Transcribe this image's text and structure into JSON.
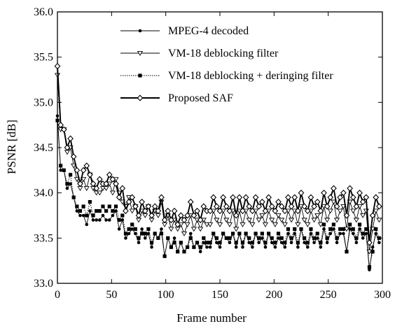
{
  "chart_data": {
    "type": "line",
    "title": "",
    "xlabel": "Frame number",
    "ylabel": "PSNR [dB]",
    "xlim": [
      0,
      300
    ],
    "ylim": [
      33.0,
      36.0
    ],
    "x_ticks": [
      0,
      50,
      100,
      150,
      200,
      250,
      300
    ],
    "x_tick_labels": [
      "0",
      "50",
      "100",
      "150",
      "200",
      "250",
      "300"
    ],
    "y_ticks": [
      33.0,
      33.5,
      34.0,
      34.5,
      35.0,
      35.5,
      36.0
    ],
    "y_tick_labels": [
      "33.0",
      "33.5",
      "34.0",
      "34.5",
      "35.0",
      "35.5",
      "36.0"
    ],
    "grid": false,
    "legend_position": "top-center",
    "x": [
      0,
      3,
      6,
      9,
      12,
      15,
      18,
      21,
      24,
      27,
      30,
      33,
      36,
      39,
      42,
      45,
      48,
      51,
      54,
      57,
      60,
      63,
      66,
      69,
      72,
      75,
      78,
      81,
      84,
      87,
      90,
      93,
      96,
      99,
      102,
      105,
      108,
      111,
      114,
      117,
      120,
      123,
      126,
      129,
      132,
      135,
      138,
      141,
      144,
      147,
      150,
      153,
      156,
      159,
      162,
      165,
      168,
      171,
      174,
      177,
      180,
      183,
      186,
      189,
      192,
      195,
      198,
      201,
      204,
      207,
      210,
      213,
      216,
      219,
      222,
      225,
      228,
      231,
      234,
      237,
      240,
      243,
      246,
      249,
      252,
      255,
      258,
      261,
      264,
      267,
      270,
      273,
      276,
      279,
      282,
      285,
      288,
      291,
      294,
      297
    ],
    "series": [
      {
        "name": "MPEG-4 decoded",
        "marker": "dot",
        "line_style": "thin",
        "values": [
          34.85,
          34.25,
          34.25,
          34.05,
          34.1,
          33.95,
          33.8,
          33.75,
          33.75,
          33.65,
          33.8,
          33.7,
          33.7,
          33.7,
          33.75,
          33.7,
          33.7,
          33.75,
          33.8,
          33.6,
          33.7,
          33.5,
          33.55,
          33.6,
          33.55,
          33.45,
          33.6,
          33.5,
          33.55,
          33.4,
          33.55,
          33.5,
          33.6,
          33.3,
          33.5,
          33.4,
          33.5,
          33.35,
          33.45,
          33.35,
          33.4,
          33.55,
          33.4,
          33.45,
          33.35,
          33.45,
          33.4,
          33.4,
          33.55,
          33.45,
          33.4,
          33.55,
          33.5,
          33.45,
          33.55,
          33.4,
          33.55,
          33.4,
          33.55,
          33.45,
          33.4,
          33.55,
          33.45,
          33.5,
          33.4,
          33.55,
          33.45,
          33.4,
          33.5,
          33.45,
          33.4,
          33.55,
          33.45,
          33.55,
          33.4,
          33.6,
          33.45,
          33.4,
          33.55,
          33.45,
          33.5,
          33.4,
          33.6,
          33.45,
          33.55,
          33.6,
          33.45,
          33.55,
          33.55,
          33.35,
          33.6,
          33.55,
          33.45,
          33.6,
          33.5,
          33.55,
          33.15,
          33.4,
          33.55,
          33.45
        ]
      },
      {
        "name": "VM-18 deblocking filter",
        "marker": "triangle-down",
        "line_style": "thin",
        "values": [
          35.3,
          34.7,
          34.7,
          34.45,
          34.5,
          34.3,
          34.15,
          34.05,
          34.15,
          34.05,
          34.2,
          34.05,
          34.0,
          34.0,
          34.05,
          34.05,
          34.1,
          34.0,
          34.15,
          34.0,
          33.9,
          33.85,
          33.95,
          33.8,
          33.85,
          33.7,
          33.8,
          33.75,
          33.85,
          33.7,
          33.8,
          33.75,
          33.9,
          33.65,
          33.75,
          33.6,
          33.7,
          33.6,
          33.65,
          33.55,
          33.65,
          33.75,
          33.6,
          33.7,
          33.6,
          33.7,
          33.65,
          33.65,
          33.8,
          33.7,
          33.65,
          33.8,
          33.7,
          33.65,
          33.8,
          33.6,
          33.8,
          33.65,
          33.8,
          33.7,
          33.65,
          33.8,
          33.7,
          33.75,
          33.65,
          33.8,
          33.7,
          33.65,
          33.75,
          33.7,
          33.65,
          33.8,
          33.7,
          33.8,
          33.65,
          33.85,
          33.7,
          33.65,
          33.8,
          33.7,
          33.75,
          33.65,
          33.85,
          33.7,
          33.8,
          33.9,
          33.7,
          33.8,
          33.85,
          33.6,
          33.9,
          33.8,
          33.7,
          33.85,
          33.75,
          33.8,
          33.35,
          33.6,
          33.8,
          33.7
        ]
      },
      {
        "name": "VM-18 deblocking + deringing filter",
        "marker": "square",
        "line_style": "dotted",
        "values": [
          34.8,
          34.3,
          34.25,
          34.1,
          34.2,
          33.95,
          33.85,
          33.8,
          33.85,
          33.75,
          33.9,
          33.75,
          33.8,
          33.8,
          33.85,
          33.8,
          33.85,
          33.8,
          33.85,
          33.7,
          33.75,
          33.55,
          33.6,
          33.65,
          33.6,
          33.5,
          33.55,
          33.55,
          33.6,
          33.45,
          33.55,
          33.5,
          33.55,
          33.3,
          33.5,
          33.4,
          33.45,
          33.35,
          33.45,
          33.35,
          33.4,
          33.5,
          33.4,
          33.45,
          33.4,
          33.5,
          33.45,
          33.45,
          33.55,
          33.5,
          33.45,
          33.55,
          33.5,
          33.5,
          33.55,
          33.45,
          33.55,
          33.45,
          33.55,
          33.5,
          33.45,
          33.55,
          33.5,
          33.55,
          33.45,
          33.55,
          33.5,
          33.45,
          33.55,
          33.5,
          33.45,
          33.6,
          33.5,
          33.6,
          33.45,
          33.6,
          33.5,
          33.45,
          33.6,
          33.5,
          33.55,
          33.45,
          33.65,
          33.5,
          33.6,
          33.65,
          33.5,
          33.6,
          33.6,
          33.35,
          33.65,
          33.6,
          33.5,
          33.65,
          33.55,
          33.6,
          33.18,
          33.35,
          33.6,
          33.5
        ]
      },
      {
        "name": "Proposed SAF",
        "marker": "diamond",
        "line_style": "thick",
        "values": [
          35.4,
          34.75,
          34.7,
          34.5,
          34.6,
          34.4,
          34.25,
          34.1,
          34.25,
          34.3,
          34.2,
          34.1,
          34.05,
          34.15,
          34.1,
          34.1,
          34.2,
          34.15,
          34.1,
          33.95,
          34.05,
          33.8,
          33.9,
          33.95,
          33.85,
          33.75,
          33.9,
          33.8,
          33.85,
          33.75,
          33.85,
          33.8,
          33.95,
          33.7,
          33.8,
          33.7,
          33.8,
          33.65,
          33.75,
          33.7,
          33.75,
          33.9,
          33.75,
          33.8,
          33.7,
          33.85,
          33.8,
          33.8,
          33.95,
          33.85,
          33.8,
          33.95,
          33.85,
          33.8,
          33.95,
          33.75,
          33.95,
          33.8,
          33.95,
          33.85,
          33.8,
          33.95,
          33.85,
          33.9,
          33.8,
          33.95,
          33.85,
          33.8,
          33.9,
          33.85,
          33.8,
          33.95,
          33.85,
          33.95,
          33.8,
          34.0,
          33.85,
          33.8,
          33.95,
          33.85,
          33.9,
          33.8,
          34.0,
          33.85,
          33.95,
          34.05,
          33.85,
          33.95,
          34.0,
          33.75,
          34.05,
          33.95,
          33.85,
          34.0,
          33.9,
          33.95,
          33.45,
          33.75,
          33.95,
          33.85
        ]
      }
    ]
  }
}
